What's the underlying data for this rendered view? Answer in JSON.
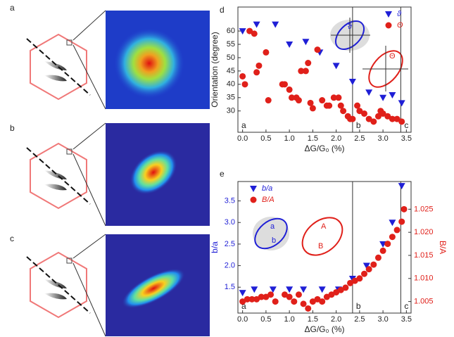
{
  "panels": [
    "a",
    "b",
    "c"
  ],
  "chart_data": [
    {
      "type": "scatter",
      "panel": "d",
      "ylabel": "Orientation (degree)",
      "xlabel": "ΔG/G₀ (%)",
      "xlim": [
        -0.1,
        3.6
      ],
      "ylim": [
        22,
        69
      ],
      "xticks": [
        {
          "value": 0,
          "label": "0.0"
        },
        0.5,
        {
          "value": 1,
          "label": "1.0"
        },
        1.5,
        {
          "value": 2,
          "label": "2.0"
        },
        2.5,
        {
          "value": 3,
          "label": "3.0"
        },
        3.5
      ],
      "yticks": [
        30,
        35,
        40,
        45,
        50,
        55,
        60
      ],
      "vlines": [
        2.35,
        3.38
      ],
      "regions": [
        "a",
        "b",
        "c"
      ],
      "inset_labels": [
        "ϑ",
        "Θ"
      ],
      "series": [
        {
          "name": "ϑ",
          "color": "#1f1fd6",
          "marker": "triangle",
          "x": [
            0.0,
            0.3,
            0.7,
            1.0,
            1.35,
            1.65,
            2.0,
            2.35,
            2.7,
            3.0,
            3.2,
            3.4
          ],
          "values": [
            60,
            62.5,
            62.5,
            55,
            56,
            52,
            47,
            41,
            37,
            35,
            36,
            33
          ]
        },
        {
          "name": "Θ",
          "color": "#e0201a",
          "marker": "circle",
          "x": [
            0,
            0.05,
            0.15,
            0.25,
            0.3,
            0.35,
            0.5,
            0.55,
            0.85,
            0.9,
            1.0,
            1.05,
            1.15,
            1.2,
            1.25,
            1.35,
            1.4,
            1.45,
            1.5,
            1.6,
            1.7,
            1.8,
            1.85,
            1.95,
            2.05,
            2.1,
            2.15,
            2.25,
            2.3,
            2.35,
            2.45,
            2.5,
            2.6,
            2.7,
            2.8,
            2.9,
            2.95,
            3.0,
            3.1,
            3.2,
            3.3,
            3.4
          ],
          "values": [
            43,
            40,
            60,
            59,
            44.5,
            47,
            52,
            34,
            40,
            40,
            38,
            35,
            35,
            34,
            45,
            45,
            48,
            33,
            31,
            53,
            34,
            32,
            32,
            35,
            35,
            32,
            30,
            28,
            27,
            27,
            32,
            30,
            29,
            27,
            26,
            28,
            30,
            29,
            28,
            27,
            27,
            26
          ]
        }
      ]
    },
    {
      "type": "scatter",
      "panel": "e",
      "ylabel": "b/a",
      "y2label": "B/A",
      "xlabel": "ΔG/G₀ (%)",
      "xlim": [
        -0.1,
        3.6
      ],
      "ylim": [
        0.9,
        3.95
      ],
      "y2lim": [
        1.0025,
        1.031
      ],
      "xticks": [
        {
          "value": 0,
          "label": "0.0"
        },
        0.5,
        {
          "value": 1,
          "label": "1.0"
        },
        1.5,
        {
          "value": 2,
          "label": "2.0"
        },
        2.5,
        {
          "value": 3,
          "label": "3.0"
        },
        3.5
      ],
      "yticks": [
        1.5,
        {
          "value": 2,
          "label": "2.0"
        },
        2.5,
        {
          "value": 3,
          "label": "3.0"
        },
        3.5
      ],
      "y2ticks": [
        1.005,
        {
          "value": 1.01,
          "label": "1.010"
        },
        1.015,
        {
          "value": 1.02,
          "label": "1.020"
        },
        1.025
      ],
      "vlines": [
        2.35,
        3.38
      ],
      "regions": [
        "a",
        "b",
        "c"
      ],
      "inset_labels": [
        "a",
        "b",
        "A",
        "B"
      ],
      "series": [
        {
          "name": "b/a",
          "color": "#1f1fd6",
          "marker": "triangle",
          "x": [
            0.0,
            0.25,
            0.65,
            1.0,
            1.3,
            1.7,
            2.05,
            2.35,
            2.65,
            3.0,
            3.2,
            3.4
          ],
          "values": [
            1.37,
            1.45,
            1.45,
            1.45,
            1.45,
            1.45,
            1.45,
            1.7,
            2.0,
            2.5,
            3.0,
            3.85
          ]
        },
        {
          "name": "B/A",
          "color": "#e0201a",
          "marker": "circle",
          "axis": "y2",
          "x": [
            0,
            0.1,
            0.2,
            0.3,
            0.4,
            0.5,
            0.6,
            0.7,
            0.9,
            1.0,
            1.1,
            1.2,
            1.3,
            1.4,
            1.5,
            1.6,
            1.7,
            1.8,
            1.9,
            2.0,
            2.1,
            2.2,
            2.3,
            2.4,
            2.5,
            2.6,
            2.7,
            2.8,
            2.9,
            3.0,
            3.1,
            3.2,
            3.3,
            3.4,
            3.45
          ],
          "values": [
            1.005,
            1.0055,
            1.0055,
            1.0055,
            1.006,
            1.006,
            1.0065,
            1.005,
            1.0065,
            1.006,
            1.005,
            1.0065,
            1.0045,
            1.0035,
            1.005,
            1.0055,
            1.005,
            1.006,
            1.0065,
            1.007,
            1.0075,
            1.008,
            1.009,
            1.0095,
            1.01,
            1.011,
            1.012,
            1.013,
            1.0145,
            1.016,
            1.0175,
            1.019,
            1.0205,
            1.0223,
            1.025
          ]
        }
      ]
    }
  ]
}
